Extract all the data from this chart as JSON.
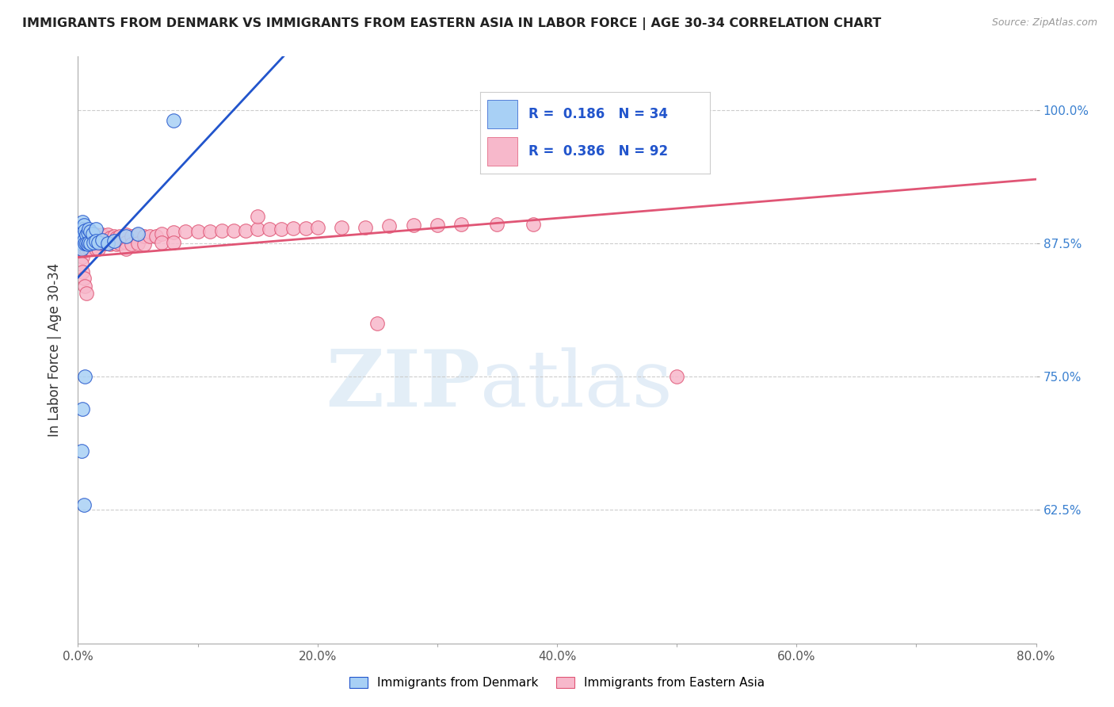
{
  "title": "IMMIGRANTS FROM DENMARK VS IMMIGRANTS FROM EASTERN ASIA IN LABOR FORCE | AGE 30-34 CORRELATION CHART",
  "source": "Source: ZipAtlas.com",
  "ylabel": "In Labor Force | Age 30-34",
  "xlim": [
    0.0,
    0.8
  ],
  "ylim": [
    0.5,
    1.05
  ],
  "denmark_R": 0.186,
  "denmark_N": 34,
  "eastern_asia_R": 0.386,
  "eastern_asia_N": 92,
  "denmark_color": "#a8d0f5",
  "eastern_asia_color": "#f7b8cb",
  "denmark_line_color": "#2255cc",
  "eastern_asia_line_color": "#e05575",
  "legend_color": "#2255cc",
  "watermark_zip": "ZIP",
  "watermark_atlas": "atlas",
  "background_color": "#ffffff",
  "ytick_vals": [
    0.625,
    0.75,
    0.875,
    1.0
  ],
  "ytick_labels": [
    "62.5%",
    "75.0%",
    "87.5%",
    "100.0%"
  ],
  "xtick_vals": [
    0.0,
    0.1,
    0.2,
    0.3,
    0.4,
    0.5,
    0.6,
    0.7,
    0.8
  ],
  "xtick_labels": [
    "0.0%",
    "",
    "20.0%",
    "",
    "40.0%",
    "",
    "60.0%",
    "",
    "80.0%"
  ],
  "dk_x": [
    0.003,
    0.003,
    0.003,
    0.003,
    0.004,
    0.004,
    0.004,
    0.005,
    0.005,
    0.006,
    0.006,
    0.007,
    0.007,
    0.008,
    0.008,
    0.009,
    0.009,
    0.01,
    0.01,
    0.012,
    0.013,
    0.015,
    0.015,
    0.017,
    0.02,
    0.025,
    0.03,
    0.04,
    0.05,
    0.003,
    0.004,
    0.005,
    0.006,
    0.08
  ],
  "dk_y": [
    0.885,
    0.88,
    0.875,
    0.87,
    0.895,
    0.888,
    0.882,
    0.892,
    0.878,
    0.887,
    0.875,
    0.883,
    0.875,
    0.885,
    0.874,
    0.888,
    0.876,
    0.886,
    0.875,
    0.884,
    0.876,
    0.888,
    0.877,
    0.876,
    0.878,
    0.875,
    0.877,
    0.882,
    0.884,
    0.68,
    0.72,
    0.63,
    0.75,
    0.99
  ],
  "ea_x": [
    0.003,
    0.003,
    0.003,
    0.004,
    0.004,
    0.004,
    0.004,
    0.005,
    0.005,
    0.005,
    0.006,
    0.006,
    0.006,
    0.007,
    0.007,
    0.007,
    0.008,
    0.008,
    0.008,
    0.009,
    0.009,
    0.009,
    0.01,
    0.01,
    0.01,
    0.012,
    0.012,
    0.013,
    0.013,
    0.015,
    0.015,
    0.015,
    0.017,
    0.017,
    0.017,
    0.02,
    0.02,
    0.022,
    0.022,
    0.025,
    0.025,
    0.027,
    0.027,
    0.03,
    0.03,
    0.032,
    0.032,
    0.035,
    0.035,
    0.04,
    0.04,
    0.04,
    0.045,
    0.045,
    0.05,
    0.05,
    0.055,
    0.055,
    0.06,
    0.065,
    0.07,
    0.07,
    0.08,
    0.08,
    0.09,
    0.1,
    0.11,
    0.12,
    0.13,
    0.14,
    0.15,
    0.16,
    0.17,
    0.18,
    0.19,
    0.2,
    0.22,
    0.24,
    0.26,
    0.28,
    0.3,
    0.32,
    0.35,
    0.38,
    0.003,
    0.004,
    0.005,
    0.006,
    0.007,
    0.15,
    0.25,
    0.5
  ],
  "ea_y": [
    0.878,
    0.873,
    0.868,
    0.882,
    0.875,
    0.87,
    0.862,
    0.88,
    0.874,
    0.868,
    0.884,
    0.876,
    0.87,
    0.882,
    0.876,
    0.87,
    0.884,
    0.877,
    0.872,
    0.882,
    0.875,
    0.87,
    0.884,
    0.876,
    0.87,
    0.883,
    0.877,
    0.881,
    0.875,
    0.883,
    0.876,
    0.87,
    0.881,
    0.875,
    0.87,
    0.883,
    0.875,
    0.881,
    0.875,
    0.883,
    0.875,
    0.88,
    0.874,
    0.882,
    0.875,
    0.88,
    0.874,
    0.882,
    0.875,
    0.883,
    0.876,
    0.87,
    0.882,
    0.874,
    0.883,
    0.875,
    0.882,
    0.874,
    0.882,
    0.882,
    0.884,
    0.876,
    0.885,
    0.876,
    0.886,
    0.886,
    0.886,
    0.887,
    0.887,
    0.887,
    0.888,
    0.888,
    0.888,
    0.889,
    0.889,
    0.89,
    0.89,
    0.89,
    0.891,
    0.892,
    0.892,
    0.893,
    0.893,
    0.893,
    0.856,
    0.848,
    0.842,
    0.835,
    0.828,
    0.9,
    0.8,
    0.75
  ]
}
